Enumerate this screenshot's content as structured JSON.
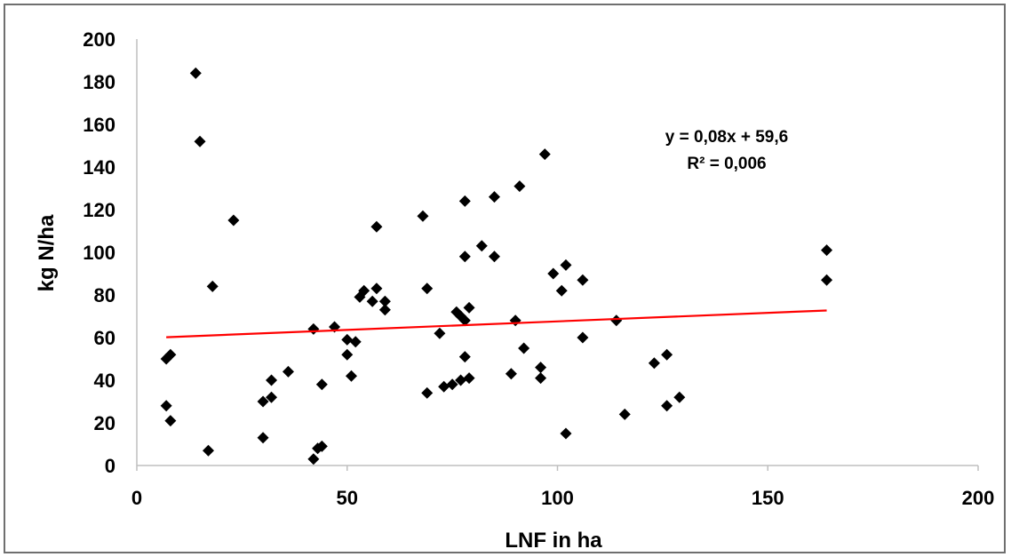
{
  "chart_data": {
    "type": "scatter",
    "title": "",
    "xlabel": "LNF in ha",
    "ylabel": "kg N/ha",
    "xlim": [
      0,
      200
    ],
    "ylim": [
      0,
      200
    ],
    "x_ticks": [
      "0",
      "50",
      "100",
      "150",
      "200"
    ],
    "y_ticks": [
      "0",
      "20",
      "40",
      "60",
      "80",
      "100",
      "120",
      "140",
      "160",
      "180",
      "200"
    ],
    "grid": false,
    "legend": "none",
    "marker": "diamond",
    "marker_color": "#000000",
    "points": [
      [
        7,
        28
      ],
      [
        7,
        50
      ],
      [
        8,
        52
      ],
      [
        8,
        21
      ],
      [
        14,
        184
      ],
      [
        15,
        152
      ],
      [
        17,
        7
      ],
      [
        18,
        84
      ],
      [
        23,
        115
      ],
      [
        30,
        30
      ],
      [
        30,
        13
      ],
      [
        32,
        32
      ],
      [
        32,
        40
      ],
      [
        36,
        44
      ],
      [
        42,
        64
      ],
      [
        42,
        3
      ],
      [
        43,
        8
      ],
      [
        44,
        38
      ],
      [
        44,
        9
      ],
      [
        47,
        65
      ],
      [
        50,
        59
      ],
      [
        50,
        52
      ],
      [
        51,
        42
      ],
      [
        52,
        58
      ],
      [
        53,
        79
      ],
      [
        54,
        82
      ],
      [
        56,
        77
      ],
      [
        57,
        83
      ],
      [
        57,
        112
      ],
      [
        59,
        77
      ],
      [
        59,
        73
      ],
      [
        68,
        117
      ],
      [
        69,
        83
      ],
      [
        69,
        34
      ],
      [
        72,
        62
      ],
      [
        73,
        37
      ],
      [
        75,
        38
      ],
      [
        76,
        72
      ],
      [
        77,
        70
      ],
      [
        77,
        40
      ],
      [
        78,
        124
      ],
      [
        78,
        98
      ],
      [
        78,
        68
      ],
      [
        78,
        51
      ],
      [
        79,
        74
      ],
      [
        79,
        41
      ],
      [
        82,
        103
      ],
      [
        85,
        126
      ],
      [
        85,
        98
      ],
      [
        89,
        43
      ],
      [
        90,
        68
      ],
      [
        91,
        131
      ],
      [
        92,
        55
      ],
      [
        96,
        46
      ],
      [
        96,
        41
      ],
      [
        97,
        146
      ],
      [
        99,
        90
      ],
      [
        101,
        82
      ],
      [
        102,
        94
      ],
      [
        102,
        15
      ],
      [
        106,
        87
      ],
      [
        106,
        60
      ],
      [
        114,
        68
      ],
      [
        116,
        24
      ],
      [
        123,
        48
      ],
      [
        126,
        52
      ],
      [
        126,
        28
      ],
      [
        129,
        32
      ],
      [
        164,
        101
      ],
      [
        164,
        87
      ]
    ],
    "trendline": {
      "slope": 0.08,
      "intercept": 59.6,
      "x_range": [
        7,
        164
      ],
      "color": "#ff0000",
      "equation_text": "y = 0,08x + 59,6",
      "r2_text": "R² = 0,006"
    }
  }
}
